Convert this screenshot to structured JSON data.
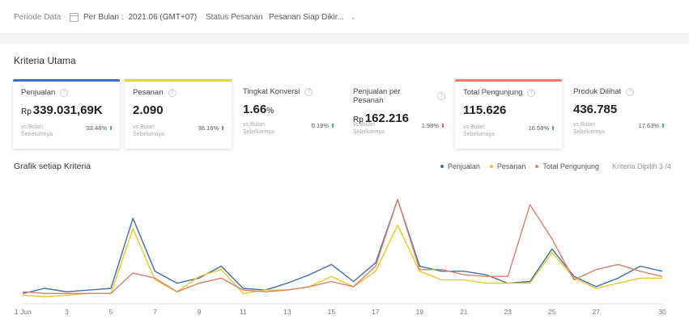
{
  "filter": {
    "period_label": "Periode Data",
    "period_value_label": "Per Bulan :",
    "period_value": "2021.06 (GMT+07)",
    "status_label": "Status Pesanan",
    "status_value": "Pesanan Siap Dikir..."
  },
  "section_title": "Kriteria Utama",
  "cards": [
    {
      "name": "Penjualan",
      "currency": "Rp",
      "value": "339.031,69K",
      "unit": "",
      "compare": "vs Bulan Sebelumnya",
      "change": "33.46%",
      "dir": "up",
      "color": "#3f6fc6"
    },
    {
      "name": "Pesanan",
      "currency": "",
      "value": "2.090",
      "unit": "",
      "compare": "vs Bulan Sebelumnya",
      "change": "36.16%",
      "dir": "up",
      "color": "#e8d53b"
    },
    {
      "name": "Tingkat Konversi",
      "currency": "",
      "value": "1.66",
      "unit": "%",
      "compare": "vs Bulan Sebelumnya",
      "change": "0.19%",
      "dir": "up",
      "color": ""
    },
    {
      "name": "Penjualan per Pesanan",
      "currency": "Rp",
      "value": "162.216",
      "unit": "",
      "compare": "vs Bulan Sebelumnya",
      "change": "1.98%",
      "dir": "down",
      "color": ""
    },
    {
      "name": "Total Pengunjung",
      "currency": "",
      "value": "115.626",
      "unit": "",
      "compare": "vs Bulan Sebelumnya",
      "change": "16.58%",
      "dir": "up",
      "color": "#f07b6b"
    },
    {
      "name": "Produk Dilihat",
      "currency": "",
      "value": "436.785",
      "unit": "",
      "compare": "vs Bulan Sebelumnya",
      "change": "17.63%",
      "dir": "up",
      "color": ""
    }
  ],
  "chart_title": "Grafik setiap Kriteria",
  "legend": {
    "items": [
      {
        "label": "Penjualan",
        "color": "#3f6fa8"
      },
      {
        "label": "Pesanan",
        "color": "#e8c92a"
      },
      {
        "label": "Total Pengunjung",
        "color": "#d9826a"
      }
    ],
    "note": "Kriteria Dipilih 3 /4"
  },
  "chart_data": {
    "type": "line",
    "x": [
      "1 Jun",
      "2",
      "3",
      "4",
      "5",
      "6",
      "7",
      "8",
      "9",
      "10",
      "11",
      "12",
      "13",
      "14",
      "15",
      "16",
      "17",
      "18",
      "19",
      "20",
      "21",
      "22",
      "23",
      "24",
      "25",
      "26",
      "27",
      "28",
      "29",
      "30"
    ],
    "x_tick_labels": [
      "1 Jun",
      "3",
      "5",
      "7",
      "9",
      "11",
      "13",
      "15",
      "17",
      "19",
      "21",
      "23",
      "25",
      "27",
      "30"
    ],
    "series": [
      {
        "name": "Penjualan",
        "color": "#3f6fa8",
        "values": [
          12,
          18,
          14,
          16,
          18,
          100,
          38,
          24,
          30,
          44,
          18,
          16,
          24,
          34,
          46,
          26,
          48,
          122,
          44,
          38,
          38,
          34,
          24,
          26,
          64,
          32,
          20,
          30,
          44,
          38
        ]
      },
      {
        "name": "Pesanan",
        "color": "#e8c92a",
        "values": [
          10,
          8,
          10,
          12,
          12,
          88,
          28,
          14,
          32,
          40,
          12,
          16,
          16,
          20,
          32,
          20,
          38,
          92,
          38,
          28,
          28,
          24,
          24,
          24,
          60,
          30,
          18,
          24,
          30,
          30
        ]
      },
      {
        "name": "Total Pengunjung",
        "color": "#d9826a",
        "values": [
          14,
          12,
          12,
          12,
          12,
          36,
          30,
          14,
          24,
          30,
          16,
          14,
          16,
          20,
          26,
          20,
          44,
          122,
          40,
          40,
          34,
          32,
          32,
          116,
          76,
          28,
          40,
          46,
          38,
          32
        ]
      }
    ],
    "ylim": [
      0,
      140
    ]
  }
}
